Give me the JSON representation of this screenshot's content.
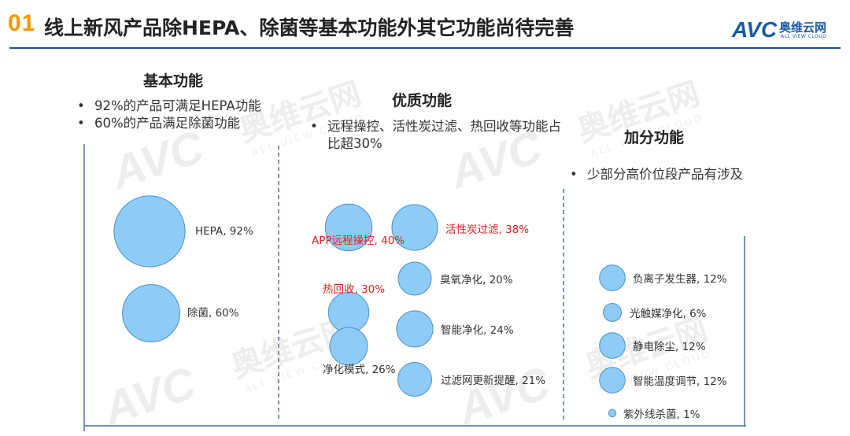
{
  "header": {
    "slide_number": "01",
    "title": "线上新风产品除HEPA、除菌等基本功能外其它功能尚待完善",
    "logo_mark": "AVC",
    "logo_cn": "奥维云网",
    "logo_en": "ALL VIEW CLOUD",
    "accent_color": "#f39800",
    "rule_color": "#1f4e8c"
  },
  "watermark": {
    "mark": "AVC",
    "cn": "奥维云网",
    "en": "ALL VIEW CLOUD"
  },
  "sections": {
    "basic": {
      "title": "基本功能",
      "bullets": [
        "92%的产品可满足HEPA功能",
        "60%的产品满足除菌功能"
      ]
    },
    "quality": {
      "title": "优质功能",
      "bullets": [
        "远程操控、活性炭过滤、热回收等功能占比超30%"
      ]
    },
    "bonus": {
      "title": "加分功能",
      "bullets": [
        "少部分高价位段产品有涉及"
      ]
    }
  },
  "chart_data": {
    "type": "bubble",
    "bubble_color": "#8ecbf7",
    "bubble_stroke": "#4a90c8",
    "groups": [
      {
        "name": "基本功能",
        "items": [
          {
            "label": "HEPA",
            "value": 92,
            "label_color": "#333333"
          },
          {
            "label": "除菌",
            "value": 60,
            "label_color": "#333333"
          }
        ]
      },
      {
        "name": "优质功能",
        "items": [
          {
            "label": "APP远程操控",
            "value": 40,
            "label_color": "#e02020"
          },
          {
            "label": "活性炭过滤",
            "value": 38,
            "label_color": "#e02020"
          },
          {
            "label": "臭氧净化",
            "value": 20,
            "label_color": "#333333"
          },
          {
            "label": "热回收",
            "value": 30,
            "label_color": "#e02020"
          },
          {
            "label": "智能净化",
            "value": 24,
            "label_color": "#333333"
          },
          {
            "label": "净化模式",
            "value": 26,
            "label_color": "#333333"
          },
          {
            "label": "过滤网更新提醒",
            "value": 21,
            "label_color": "#333333"
          }
        ]
      },
      {
        "name": "加分功能",
        "items": [
          {
            "label": "负离子发生器",
            "value": 12,
            "label_color": "#333333"
          },
          {
            "label": "光触媒净化",
            "value": 6,
            "label_color": "#333333"
          },
          {
            "label": "静电除尘",
            "value": 12,
            "label_color": "#333333"
          },
          {
            "label": "智能温度调节",
            "value": 12,
            "label_color": "#333333"
          },
          {
            "label": "紫外线杀菌",
            "value": 1,
            "label_color": "#333333"
          }
        ]
      }
    ]
  }
}
